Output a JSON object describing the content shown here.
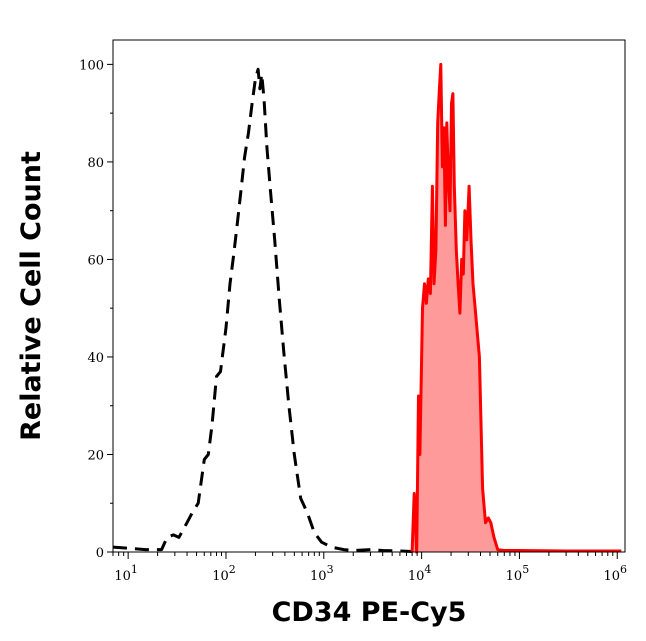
{
  "chart_data": {
    "type": "area",
    "xlabel": "CD34 PE-Cy5",
    "ylabel": "Relative Cell Count",
    "x_scale": "log",
    "xlim": [
      7,
      1200000
    ],
    "ylim": [
      0,
      105
    ],
    "x_ticks": [
      {
        "value": 10,
        "base": "10",
        "exp": "1"
      },
      {
        "value": 100,
        "base": "10",
        "exp": "2"
      },
      {
        "value": 1000,
        "base": "10",
        "exp": "3"
      },
      {
        "value": 10000,
        "base": "10",
        "exp": "4"
      },
      {
        "value": 100000,
        "base": "10",
        "exp": "5"
      },
      {
        "value": 1000000,
        "base": "10",
        "exp": "6"
      }
    ],
    "y_ticks": [
      "0",
      "20",
      "40",
      "60",
      "80",
      "100"
    ],
    "series": [
      {
        "style": "dashed",
        "color": "#000000",
        "fill": "none",
        "points": [
          [
            7,
            1
          ],
          [
            15,
            0.5
          ],
          [
            22,
            0.5
          ],
          [
            25,
            3
          ],
          [
            29,
            3.5
          ],
          [
            33,
            3
          ],
          [
            40,
            6
          ],
          [
            45,
            8
          ],
          [
            52,
            10
          ],
          [
            60,
            19
          ],
          [
            66,
            20
          ],
          [
            72,
            26
          ],
          [
            80,
            36
          ],
          [
            88,
            37
          ],
          [
            100,
            46
          ],
          [
            110,
            55
          ],
          [
            120,
            61
          ],
          [
            130,
            67
          ],
          [
            142,
            74
          ],
          [
            155,
            81
          ],
          [
            170,
            86
          ],
          [
            185,
            92
          ],
          [
            200,
            97
          ],
          [
            213,
            99
          ],
          [
            222,
            95
          ],
          [
            232,
            98
          ],
          [
            245,
            93
          ],
          [
            262,
            83
          ],
          [
            285,
            74
          ],
          [
            315,
            64
          ],
          [
            350,
            52
          ],
          [
            390,
            41
          ],
          [
            440,
            30
          ],
          [
            500,
            20
          ],
          [
            580,
            11
          ],
          [
            680,
            8
          ],
          [
            800,
            4
          ],
          [
            950,
            2
          ],
          [
            1200,
            1
          ],
          [
            1600,
            0.5
          ],
          [
            2100,
            0.3
          ],
          [
            3000,
            0.5
          ],
          [
            4000,
            0.3
          ],
          [
            6000,
            0.2
          ],
          [
            8000,
            0.1
          ]
        ]
      },
      {
        "style": "solid",
        "color": "#ff0000",
        "fill": "#ff9a9a",
        "points": [
          [
            8000,
            0
          ],
          [
            8400,
            12
          ],
          [
            8900,
            0
          ],
          [
            9300,
            32
          ],
          [
            9600,
            20
          ],
          [
            10200,
            50
          ],
          [
            10700,
            55
          ],
          [
            11200,
            51
          ],
          [
            11700,
            56
          ],
          [
            12300,
            53
          ],
          [
            12900,
            75
          ],
          [
            13400,
            55
          ],
          [
            14000,
            62
          ],
          [
            14600,
            88
          ],
          [
            15200,
            95
          ],
          [
            15700,
            100
          ],
          [
            16300,
            79
          ],
          [
            16900,
            87
          ],
          [
            17500,
            67
          ],
          [
            18100,
            88
          ],
          [
            18800,
            76
          ],
          [
            19500,
            70
          ],
          [
            20200,
            92
          ],
          [
            20900,
            94
          ],
          [
            21600,
            75
          ],
          [
            22600,
            62
          ],
          [
            23600,
            55
          ],
          [
            24600,
            49
          ],
          [
            25700,
            60
          ],
          [
            26700,
            57
          ],
          [
            27700,
            70
          ],
          [
            29000,
            64
          ],
          [
            30600,
            75
          ],
          [
            32000,
            64
          ],
          [
            33500,
            55
          ],
          [
            36000,
            48
          ],
          [
            39000,
            40
          ],
          [
            42000,
            13
          ],
          [
            45000,
            6
          ],
          [
            48000,
            7
          ],
          [
            51000,
            6
          ],
          [
            55000,
            3
          ],
          [
            60000,
            0.5
          ],
          [
            70000,
            0.3
          ],
          [
            100000,
            0.3
          ],
          [
            300000,
            0.2
          ],
          [
            1100000,
            0.2
          ]
        ]
      }
    ]
  }
}
